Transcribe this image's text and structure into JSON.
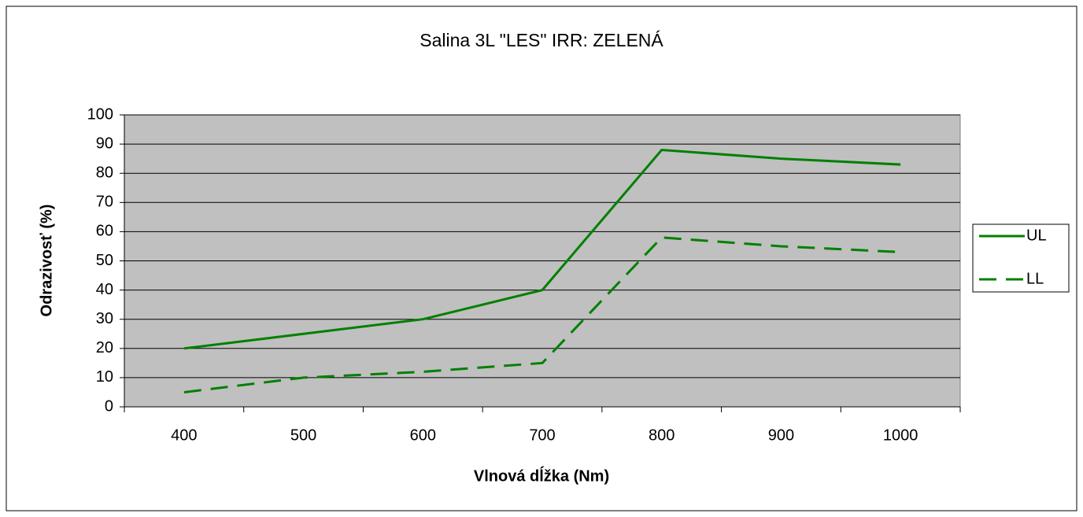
{
  "chart_data": {
    "type": "line",
    "title": "Salina 3L \"LES\" IRR: ZELENÁ",
    "x_label": "Vlnová dĺžka (Nm)",
    "y_label": "Odrazivosť (%)",
    "categories": [
      "400",
      "500",
      "600",
      "700",
      "800",
      "900",
      "1000"
    ],
    "series": [
      {
        "name": "UL",
        "color": "#008000",
        "line_style": "solid",
        "values": [
          20,
          25,
          30,
          40,
          88,
          85,
          83
        ]
      },
      {
        "name": "LL",
        "color": "#008000",
        "line_style": "dashed",
        "values": [
          5,
          10,
          12,
          15,
          58,
          55,
          53
        ]
      }
    ],
    "ylim": [
      0,
      100
    ],
    "yticks": [
      0,
      10,
      20,
      30,
      40,
      50,
      60,
      70,
      80,
      90,
      100
    ],
    "grid": true,
    "legend": "right"
  }
}
